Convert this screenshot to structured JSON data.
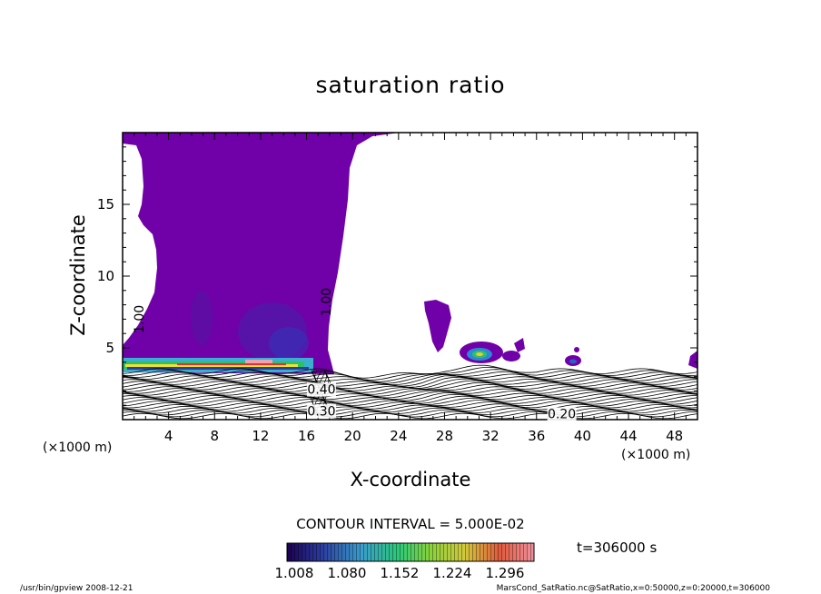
{
  "chart_data": {
    "type": "heatmap",
    "title": "saturation ratio",
    "xlabel": "X-coordinate",
    "ylabel": "Z-coordinate",
    "x_unit": "(×1000 m)",
    "y_unit": "(×1000 m)",
    "xlim": [
      0,
      50
    ],
    "ylim": [
      0,
      20
    ],
    "x_ticks": [
      4,
      8,
      12,
      16,
      20,
      24,
      28,
      32,
      36,
      40,
      44,
      48
    ],
    "y_ticks": [
      5,
      10,
      15
    ],
    "contour_interval": "CONTOUR INTERVAL = 5.000E-02",
    "contour_labels": [
      {
        "text": "1.00",
        "x": 1.8,
        "z": 7.0
      },
      {
        "text": "1.00",
        "x": 18.1,
        "z": 8.2
      },
      {
        "text": "0.20",
        "x": 38.2,
        "z": 0.1
      },
      {
        "text": "0.30",
        "x": 17.3,
        "z": 0.3
      },
      {
        "text": "0.40",
        "x": 17.3,
        "z": 1.8
      }
    ],
    "time_label": "t=306000 s",
    "colorbar": {
      "ticks": [
        "1.008",
        "1.080",
        "1.152",
        "1.224",
        "1.296"
      ],
      "colors": [
        "#1a0050",
        "#2a3c9c",
        "#3a9ccc",
        "#2ac87a",
        "#8ad23c",
        "#d2c83c",
        "#e05a3c",
        "#f090a0"
      ]
    },
    "colors": {
      "supersaturated_fill": "#7000A8",
      "contour_line": "#000000"
    },
    "footer_left": "/usr/bin/gpview   2008-12-21",
    "footer_right": "MarsCond_SatRatio.nc@SatRatio,x=0:50000,z=0:20000,t=306000"
  }
}
